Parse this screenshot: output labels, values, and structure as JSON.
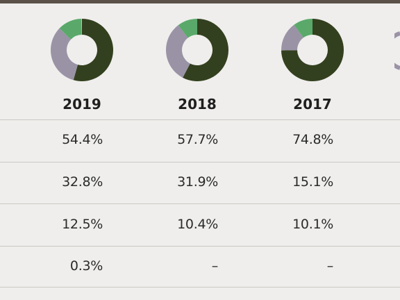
{
  "colors": {
    "dark": "#33401f",
    "purple": "#9a93a6",
    "green": "#5aa96a",
    "other": "#c9c2cf",
    "topbar": "#5b5148"
  },
  "chart_data": {
    "type": "table",
    "columns": [
      "2019",
      "2018",
      "2017"
    ],
    "rows": [
      [
        "54.4%",
        "57.7%",
        "74.8%"
      ],
      [
        "32.8%",
        "31.9%",
        "15.1%"
      ],
      [
        "12.5%",
        "10.4%",
        "10.1%"
      ],
      [
        "0.3%",
        "–",
        "–"
      ]
    ],
    "donuts": [
      {
        "year": "2019",
        "values": [
          54.4,
          32.8,
          12.5,
          0.3
        ]
      },
      {
        "year": "2018",
        "values": [
          57.7,
          31.9,
          10.4,
          0
        ]
      },
      {
        "year": "2017",
        "values": [
          74.8,
          15.1,
          10.1,
          0
        ]
      }
    ]
  }
}
